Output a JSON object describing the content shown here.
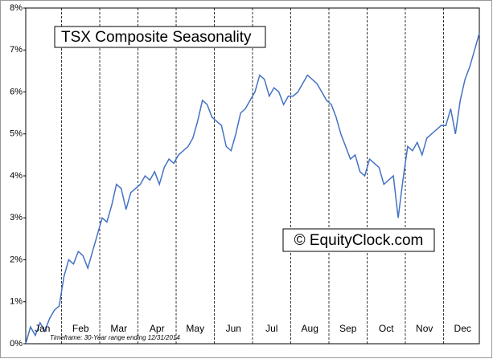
{
  "chart_data": {
    "type": "line",
    "title": "TSX Composite Seasonality",
    "watermark": "© EquityClock.com",
    "footnote": "Timeframe: 30-Year range ending 12/31/2014",
    "categories": [
      null,
      null,
      null,
      null,
      "Jan",
      null,
      null,
      null,
      null,
      null,
      null,
      null,
      "Feb",
      null,
      null,
      null,
      null,
      null,
      null,
      null,
      "Mar",
      null,
      null,
      null,
      null,
      null,
      null,
      null,
      "Apr",
      null,
      null,
      null,
      null,
      null,
      null,
      null,
      "May",
      null,
      null,
      null,
      null,
      null,
      null,
      null,
      "Jun",
      null,
      null,
      null,
      null,
      null,
      null,
      null,
      "Jul",
      null,
      null,
      null,
      null,
      null,
      null,
      null,
      "Aug",
      null,
      null,
      null,
      null,
      null,
      null,
      null,
      "Sep",
      null,
      null,
      null,
      null,
      null,
      null,
      null,
      "Oct",
      null,
      null,
      null,
      null,
      null,
      null,
      null,
      "Nov",
      null,
      null,
      null,
      null,
      null,
      null,
      null,
      "Dec",
      null,
      null,
      null
    ],
    "series": [
      {
        "name": "TSX Composite",
        "color": "#4472c4",
        "values": [
          0,
          0.4,
          0.2,
          0.5,
          0.3,
          0.6,
          0.8,
          0.9,
          1.6,
          2.0,
          1.9,
          2.2,
          2.1,
          1.8,
          2.2,
          2.6,
          3.0,
          2.9,
          3.3,
          3.8,
          3.7,
          3.2,
          3.6,
          3.7,
          3.8,
          4.0,
          3.9,
          4.1,
          3.8,
          4.2,
          4.4,
          4.3,
          4.5,
          4.6,
          4.7,
          4.9,
          5.3,
          5.8,
          5.7,
          5.4,
          5.3,
          5.2,
          4.7,
          4.6,
          5.0,
          5.5,
          5.6,
          5.8,
          6.0,
          6.4,
          6.3,
          5.9,
          6.1,
          6.0,
          5.7,
          5.9,
          5.9,
          6.0,
          6.2,
          6.4,
          6.3,
          6.2,
          6.0,
          5.8,
          5.7,
          5.4,
          5.0,
          4.7,
          4.4,
          4.5,
          4.1,
          4.0,
          4.4,
          4.3,
          4.2,
          3.8,
          3.9,
          4.0,
          3.0,
          3.9,
          4.7,
          4.6,
          4.8,
          4.5,
          4.9,
          5.0,
          5.1,
          5.2,
          5.2,
          5.6,
          5.0,
          5.8,
          6.3,
          6.6,
          7.0,
          7.4
        ]
      }
    ],
    "ylim": [
      0,
      8
    ],
    "yticks": [
      {
        "value": 0,
        "label": "0%"
      },
      {
        "value": 1,
        "label": "1%"
      },
      {
        "value": 2,
        "label": "2%"
      },
      {
        "value": 3,
        "label": "3%"
      },
      {
        "value": 4,
        "label": "4%"
      },
      {
        "value": 5,
        "label": "5%"
      },
      {
        "value": 6,
        "label": "6%"
      },
      {
        "value": 7,
        "label": "7%"
      },
      {
        "value": 8,
        "label": "8%"
      }
    ]
  }
}
